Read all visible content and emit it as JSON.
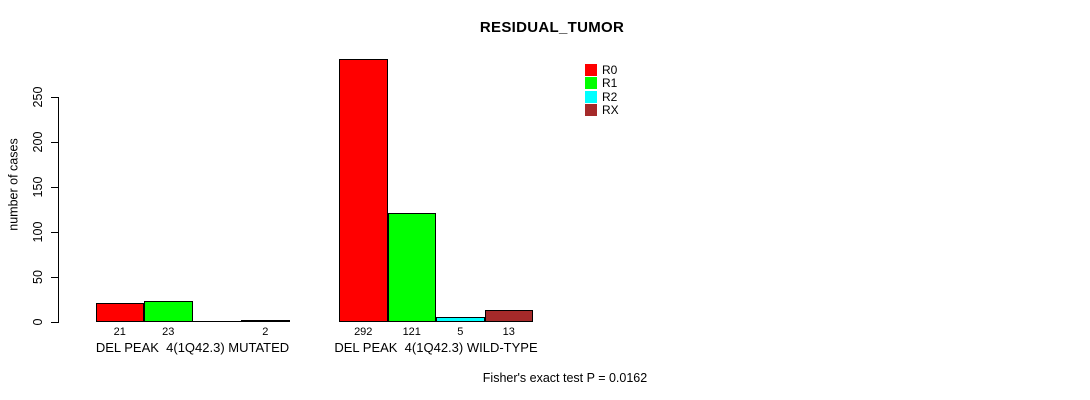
{
  "chart_data": {
    "type": "bar",
    "title": "RESIDUAL_TUMOR",
    "ylabel": "number of cases",
    "xlabel": "",
    "ylim": [
      0,
      250
    ],
    "yticks": [
      0,
      50,
      100,
      150,
      200,
      250
    ],
    "grid": false,
    "legend_position": "top-right",
    "categories": [
      "DEL PEAK  4(1Q42.3) MUTATED",
      "DEL PEAK  4(1Q42.3) WILD-TYPE"
    ],
    "series": [
      {
        "name": "R0",
        "color": "#FF0000",
        "values": [
          21,
          292
        ]
      },
      {
        "name": "R1",
        "color": "#00FF00",
        "values": [
          23,
          121
        ]
      },
      {
        "name": "R2",
        "color": "#00FFFF",
        "values": [
          0,
          5
        ]
      },
      {
        "name": "RX",
        "color": "#A52A2A",
        "values": [
          2,
          13
        ]
      }
    ],
    "bar_value_labels": [
      [
        "21",
        "23",
        "",
        "2"
      ],
      [
        "292",
        "121",
        "5",
        "13"
      ]
    ],
    "footnote": "Fisher's exact test P = 0.0162"
  },
  "colors": {
    "axis": "#000000",
    "bar_outline": "#000000",
    "background": "#ffffff"
  }
}
